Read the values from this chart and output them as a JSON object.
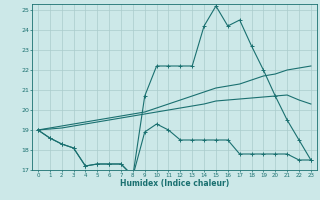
{
  "xlabel": "Humidex (Indice chaleur)",
  "bg_color": "#cce8e8",
  "grid_color": "#aacccc",
  "line_color": "#1a7070",
  "xlim": [
    -0.5,
    23.5
  ],
  "ylim": [
    17,
    25.3
  ],
  "xticks": [
    0,
    1,
    2,
    3,
    4,
    5,
    6,
    7,
    8,
    9,
    10,
    11,
    12,
    13,
    14,
    15,
    16,
    17,
    18,
    19,
    20,
    21,
    22,
    23
  ],
  "yticks": [
    17,
    18,
    19,
    20,
    21,
    22,
    23,
    24,
    25
  ],
  "line_bottom": [
    19.0,
    18.6,
    18.3,
    18.1,
    17.2,
    17.3,
    17.3,
    17.3,
    16.7,
    18.9,
    19.3,
    19.0,
    18.5,
    18.5,
    18.5,
    18.5,
    18.5,
    17.8,
    17.8,
    17.8,
    17.8,
    17.8,
    17.5,
    17.5
  ],
  "line_top": [
    19.0,
    18.6,
    18.3,
    18.1,
    17.2,
    17.3,
    17.3,
    17.3,
    16.7,
    20.7,
    22.2,
    22.2,
    22.2,
    22.2,
    24.2,
    25.2,
    24.2,
    24.5,
    23.2,
    22.0,
    20.7,
    19.5,
    18.5,
    17.5
  ],
  "line_diag1": [
    19.0,
    19.1,
    19.2,
    19.3,
    19.4,
    19.5,
    19.6,
    19.7,
    19.8,
    19.9,
    20.1,
    20.3,
    20.5,
    20.7,
    20.9,
    21.1,
    21.2,
    21.3,
    21.5,
    21.7,
    21.8,
    22.0,
    22.1,
    22.2
  ],
  "line_diag2": [
    19.0,
    19.05,
    19.1,
    19.2,
    19.3,
    19.4,
    19.5,
    19.6,
    19.7,
    19.8,
    19.9,
    20.0,
    20.1,
    20.2,
    20.3,
    20.45,
    20.5,
    20.55,
    20.6,
    20.65,
    20.7,
    20.75,
    20.5,
    20.3
  ]
}
